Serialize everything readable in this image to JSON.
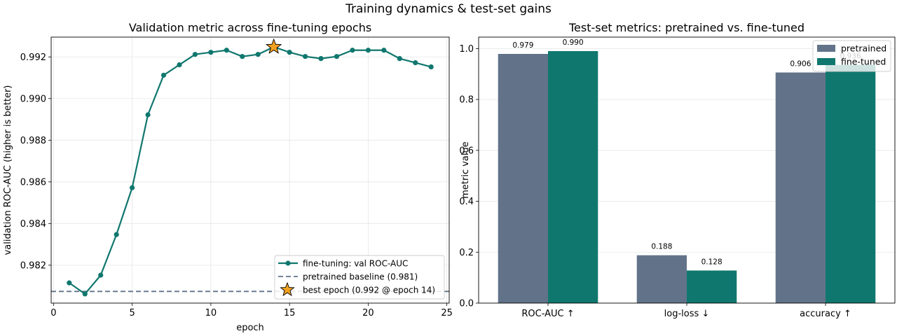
{
  "suptitle": "Training dynamics & test-set gains",
  "colors": {
    "finetuned": "#10776e",
    "pretrained": "#627389",
    "star": "#f2a11f",
    "grid": "#e6e6e6"
  },
  "chart_data": [
    {
      "type": "line",
      "title": "Validation metric across fine-tuning epochs",
      "xlabel": "epoch",
      "ylabel": "validation ROC-AUC (higher is better)",
      "xlim": [
        -0.15,
        25.15
      ],
      "ylim": [
        0.98018,
        0.99295
      ],
      "xticks": [
        0,
        5,
        10,
        15,
        20,
        25
      ],
      "yticks": [
        0.982,
        0.984,
        0.986,
        0.988,
        0.99,
        0.992
      ],
      "ytick_labels": [
        "0.982",
        "0.984",
        "0.986",
        "0.988",
        "0.990",
        "0.992"
      ],
      "grid": true,
      "legend_position": "lower-right",
      "series": [
        {
          "name": "fine-tuning: val ROC-AUC",
          "x": [
            1,
            2,
            3,
            4,
            5,
            6,
            7,
            8,
            9,
            10,
            11,
            12,
            13,
            14,
            15,
            16,
            17,
            18,
            19,
            20,
            21,
            22,
            23,
            24
          ],
          "y": [
            0.98115,
            0.98062,
            0.98152,
            0.98347,
            0.98572,
            0.98922,
            0.99112,
            0.99162,
            0.99212,
            0.99222,
            0.99232,
            0.99202,
            0.99212,
            0.99248,
            0.99222,
            0.99202,
            0.99192,
            0.99202,
            0.99232,
            0.99232,
            0.99232,
            0.99192,
            0.99172,
            0.99152
          ]
        }
      ],
      "baseline": {
        "name": "pretrained baseline (0.981)",
        "y": 0.98074
      },
      "best": {
        "name": "best epoch (0.992 @ epoch 14)",
        "x": 14,
        "y": 0.99248
      }
    },
    {
      "type": "bar",
      "title": "Test-set metrics: pretrained vs. fine-tuned",
      "ylabel": "metric value",
      "categories": [
        "ROC-AUC ↑",
        "log-loss ↓",
        "accuracy ↑"
      ],
      "ylim": [
        0,
        1.045
      ],
      "yticks": [
        0.0,
        0.2,
        0.4,
        0.6,
        0.8,
        1.0
      ],
      "ytick_labels": [
        "0.0",
        "0.2",
        "0.4",
        "0.6",
        "0.8",
        "1.0"
      ],
      "grid": true,
      "legend_position": "top-right",
      "series": [
        {
          "name": "pretrained",
          "values": [
            0.979,
            0.188,
            0.906
          ],
          "labels": [
            "0.979",
            "0.188",
            "0.906"
          ]
        },
        {
          "name": "fine-tuned",
          "values": [
            0.99,
            0.128,
            0.936
          ],
          "labels": [
            "0.990",
            "0.128",
            "0.936"
          ]
        }
      ]
    }
  ]
}
